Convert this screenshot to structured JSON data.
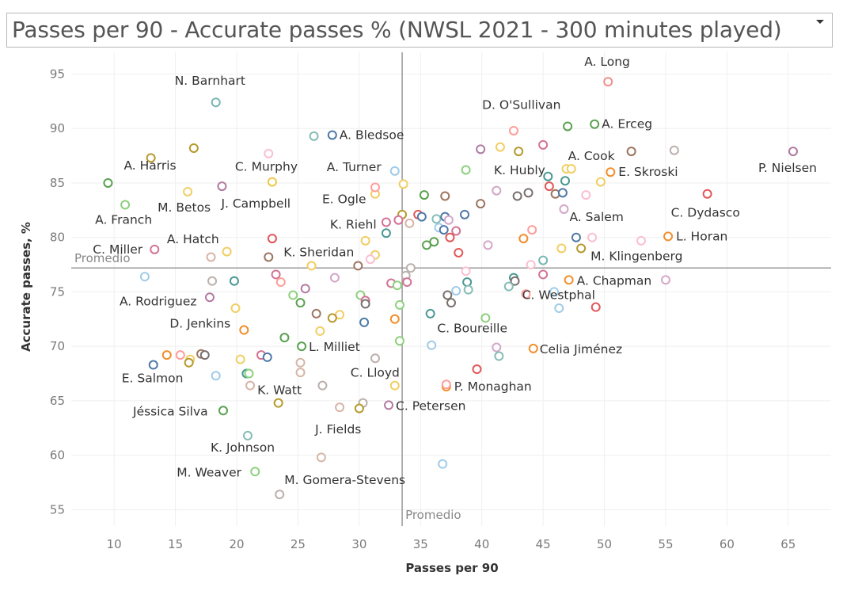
{
  "header": {
    "title": "Passes per 90 - Accurate passes % (NWSL 2021 - 300 minutes played)",
    "dropdown_icon": "caret-down-icon"
  },
  "chart_data": {
    "type": "scatter",
    "title": "Passes per 90 - Accurate passes % (NWSL 2021 - 300 minutes played)",
    "xlabel": "Passes per 90",
    "ylabel": "Accurate passes, %",
    "xlim": [
      6.5,
      68.5
    ],
    "ylim": [
      53.5,
      97
    ],
    "xticks": [
      10,
      15,
      20,
      25,
      30,
      35,
      40,
      45,
      50,
      55,
      60,
      65
    ],
    "yticks": [
      55,
      60,
      65,
      70,
      75,
      80,
      85,
      90,
      95
    ],
    "grid": true,
    "reference_lines": [
      {
        "axis": "x",
        "value": 33.5,
        "label": "Promedio"
      },
      {
        "axis": "y",
        "value": 77.2,
        "label": "Promedio"
      }
    ],
    "points": [
      {
        "x": 50.3,
        "y": 94.3,
        "label": "A. Long",
        "color": "#f28e8c"
      },
      {
        "x": 18.3,
        "y": 92.4,
        "label": "N. Barnhart",
        "color": "#76b7b2"
      },
      {
        "x": 47.0,
        "y": 90.2,
        "label": "D. O'Sullivan",
        "color": "#59a14f"
      },
      {
        "x": 49.2,
        "y": 90.4,
        "label": "A. Erceg",
        "color": "#59a14f"
      },
      {
        "x": 27.8,
        "y": 89.4,
        "label": "A. Bledsoe",
        "color": "#4e79a7"
      },
      {
        "x": 65.4,
        "y": 87.9,
        "label": "P. Nielsen",
        "color": "#b07aa1"
      },
      {
        "x": 52.2,
        "y": 87.9,
        "label": "A. Cook",
        "color": "#9c755f"
      },
      {
        "x": 50.5,
        "y": 86.0,
        "label": "E. Skroski",
        "color": "#f28e2b"
      },
      {
        "x": 9.5,
        "y": 85.0,
        "label": "A. Harris",
        "color": "#59a14f"
      },
      {
        "x": 22.9,
        "y": 85.1,
        "label": "C. Murphy",
        "color": "#edc948"
      },
      {
        "x": 32.9,
        "y": 86.1,
        "label": "A. Turner",
        "color": "#a0cbe8"
      },
      {
        "x": 46.8,
        "y": 85.2,
        "label": "K. Hubly",
        "color": "#499894"
      },
      {
        "x": 31.3,
        "y": 84.0,
        "label": "E. Ogle",
        "color": "#f1ce63"
      },
      {
        "x": 58.4,
        "y": 84.0,
        "label": "C. Dydasco",
        "color": "#e15759"
      },
      {
        "x": 10.9,
        "y": 83.0,
        "label": "A. Franch",
        "color": "#8cd17d"
      },
      {
        "x": 16.0,
        "y": 84.2,
        "label": "M. Betos",
        "color": "#f1ce63"
      },
      {
        "x": 18.8,
        "y": 84.7,
        "label": "J. Campbell",
        "color": "#b07aa1"
      },
      {
        "x": 46.7,
        "y": 82.6,
        "label": "A. Salem",
        "color": "#d4a6c8"
      },
      {
        "x": 32.2,
        "y": 81.4,
        "label": "K. Riehl",
        "color": "#d37295"
      },
      {
        "x": 55.2,
        "y": 80.1,
        "label": "L. Horan",
        "color": "#f28e2b"
      },
      {
        "x": 22.9,
        "y": 79.9,
        "label": "A. Hatch",
        "color": "#e15759"
      },
      {
        "x": 13.3,
        "y": 78.9,
        "label": "C. Miller",
        "color": "#d37295"
      },
      {
        "x": 48.1,
        "y": 79.0,
        "label": "M. Klingenberg",
        "color": "#b6992d"
      },
      {
        "x": 22.6,
        "y": 78.2,
        "label": "K. Sheridan",
        "color": "#9c755f"
      },
      {
        "x": 47.1,
        "y": 76.1,
        "label": "A. Chapman",
        "color": "#f28e2b"
      },
      {
        "x": 17.8,
        "y": 74.5,
        "label": "A. Rodriguez",
        "color": "#b07aa1"
      },
      {
        "x": 40.3,
        "y": 72.6,
        "label": "C. Boureille",
        "color": "#8cd17d"
      },
      {
        "x": 49.3,
        "y": 73.6,
        "label": "C. Westphal",
        "color": "#e15759"
      },
      {
        "x": 20.6,
        "y": 71.5,
        "label": "D. Jenkins",
        "color": "#f28e2b"
      },
      {
        "x": 25.3,
        "y": 70.0,
        "label": "L. Milliet",
        "color": "#59a14f"
      },
      {
        "x": 44.2,
        "y": 69.8,
        "label": "Celia Jiménez",
        "color": "#f28e2b"
      },
      {
        "x": 13.2,
        "y": 68.3,
        "label": "E. Salmon",
        "color": "#4e79a7"
      },
      {
        "x": 32.9,
        "y": 66.4,
        "label": "C. Lloyd",
        "color": "#f1ce63"
      },
      {
        "x": 21.1,
        "y": 66.4,
        "label": "K. Watt",
        "color": "#d7b5a6"
      },
      {
        "x": 37.1,
        "y": 66.3,
        "label": "P. Monaghan",
        "color": "#f28e2b"
      },
      {
        "x": 18.9,
        "y": 64.1,
        "label": "Jéssica Silva",
        "color": "#59a14f"
      },
      {
        "x": 32.4,
        "y": 64.6,
        "label": "C. Petersen",
        "color": "#b07aa1"
      },
      {
        "x": 28.4,
        "y": 64.4,
        "label": "J. Fields",
        "color": "#d7b5a6"
      },
      {
        "x": 20.9,
        "y": 61.8,
        "label": "K. Johnson",
        "color": "#86bcb6"
      },
      {
        "x": 21.5,
        "y": 58.5,
        "label": "M. Weaver",
        "color": "#8cd17d"
      },
      {
        "x": 23.5,
        "y": 56.4,
        "label": "M. Gomera-Stevens",
        "color": "#bab0ac"
      },
      {
        "x": 16.5,
        "y": 88.2,
        "color": "#b6992d"
      },
      {
        "x": 13.0,
        "y": 87.3,
        "color": "#b6992d"
      },
      {
        "x": 22.6,
        "y": 87.7,
        "color": "#fabfd2"
      },
      {
        "x": 26.3,
        "y": 89.3,
        "color": "#86bcb6"
      },
      {
        "x": 42.6,
        "y": 89.8,
        "color": "#ff9d9a"
      },
      {
        "x": 39.9,
        "y": 88.1,
        "color": "#b07aa1"
      },
      {
        "x": 41.5,
        "y": 88.3,
        "color": "#f1ce63"
      },
      {
        "x": 43.0,
        "y": 87.9,
        "color": "#b6992d"
      },
      {
        "x": 45.0,
        "y": 88.5,
        "color": "#d37295"
      },
      {
        "x": 55.7,
        "y": 88.0,
        "color": "#bab0ac"
      },
      {
        "x": 38.7,
        "y": 86.2,
        "color": "#8cd17d"
      },
      {
        "x": 45.4,
        "y": 85.6,
        "color": "#499894"
      },
      {
        "x": 46.9,
        "y": 86.3,
        "color": "#f1ce63"
      },
      {
        "x": 47.3,
        "y": 86.3,
        "color": "#f1ce63"
      },
      {
        "x": 49.7,
        "y": 85.1,
        "color": "#f1ce63"
      },
      {
        "x": 33.6,
        "y": 84.9,
        "color": "#f1ce63"
      },
      {
        "x": 31.3,
        "y": 84.6,
        "color": "#ff9d9a"
      },
      {
        "x": 35.3,
        "y": 83.9,
        "color": "#59a14f"
      },
      {
        "x": 37.0,
        "y": 83.8,
        "color": "#9c755f"
      },
      {
        "x": 41.2,
        "y": 84.3,
        "color": "#d4a6c8"
      },
      {
        "x": 42.9,
        "y": 83.8,
        "color": "#79706e"
      },
      {
        "x": 43.8,
        "y": 84.1,
        "color": "#79706e"
      },
      {
        "x": 45.5,
        "y": 84.7,
        "color": "#e15759"
      },
      {
        "x": 46.0,
        "y": 84.0,
        "color": "#9c755f"
      },
      {
        "x": 46.6,
        "y": 84.1,
        "color": "#4e79a7"
      },
      {
        "x": 48.5,
        "y": 83.9,
        "color": "#fabfd2"
      },
      {
        "x": 39.9,
        "y": 83.1,
        "color": "#9c755f"
      },
      {
        "x": 38.6,
        "y": 82.1,
        "color": "#4e79a7"
      },
      {
        "x": 33.5,
        "y": 82.1,
        "color": "#b6992d"
      },
      {
        "x": 34.8,
        "y": 82.1,
        "color": "#e15759"
      },
      {
        "x": 35.1,
        "y": 81.9,
        "color": "#4e79a7"
      },
      {
        "x": 36.3,
        "y": 81.7,
        "color": "#86bcb6"
      },
      {
        "x": 37.0,
        "y": 81.9,
        "color": "#4e79a7"
      },
      {
        "x": 37.3,
        "y": 81.6,
        "color": "#d4a6c8"
      },
      {
        "x": 34.1,
        "y": 81.3,
        "color": "#d7b5a6"
      },
      {
        "x": 33.2,
        "y": 81.6,
        "color": "#d37295"
      },
      {
        "x": 36.5,
        "y": 80.9,
        "color": "#a0cbe8"
      },
      {
        "x": 36.9,
        "y": 80.7,
        "color": "#4e79a7"
      },
      {
        "x": 37.9,
        "y": 80.6,
        "color": "#d37295"
      },
      {
        "x": 44.1,
        "y": 80.7,
        "color": "#ff9d9a"
      },
      {
        "x": 32.2,
        "y": 80.4,
        "color": "#499894"
      },
      {
        "x": 37.4,
        "y": 80.0,
        "color": "#e15759"
      },
      {
        "x": 43.4,
        "y": 79.9,
        "color": "#f28e2b"
      },
      {
        "x": 47.7,
        "y": 80.0,
        "color": "#4e79a7"
      },
      {
        "x": 49.0,
        "y": 80.0,
        "color": "#fabfd2"
      },
      {
        "x": 53.0,
        "y": 79.7,
        "color": "#fabfd2"
      },
      {
        "x": 30.5,
        "y": 79.7,
        "color": "#f1ce63"
      },
      {
        "x": 36.1,
        "y": 79.6,
        "color": "#59a14f"
      },
      {
        "x": 35.5,
        "y": 79.3,
        "color": "#59a14f"
      },
      {
        "x": 40.5,
        "y": 79.3,
        "color": "#d4a6c8"
      },
      {
        "x": 46.5,
        "y": 79.0,
        "color": "#f1ce63"
      },
      {
        "x": 19.2,
        "y": 78.7,
        "color": "#f1ce63"
      },
      {
        "x": 38.1,
        "y": 78.6,
        "color": "#e15759"
      },
      {
        "x": 31.3,
        "y": 78.4,
        "color": "#f1ce63"
      },
      {
        "x": 17.9,
        "y": 78.2,
        "color": "#d7b5a6"
      },
      {
        "x": 30.9,
        "y": 78.0,
        "color": "#fabfd2"
      },
      {
        "x": 45.0,
        "y": 77.9,
        "color": "#76b7b2"
      },
      {
        "x": 44.0,
        "y": 77.5,
        "color": "#fabfd2"
      },
      {
        "x": 26.1,
        "y": 77.4,
        "color": "#f1ce63"
      },
      {
        "x": 29.9,
        "y": 77.4,
        "color": "#9c755f"
      },
      {
        "x": 34.2,
        "y": 77.2,
        "color": "#bab0ac"
      },
      {
        "x": 38.7,
        "y": 76.9,
        "color": "#fabfd2"
      },
      {
        "x": 12.5,
        "y": 76.4,
        "color": "#a0cbe8"
      },
      {
        "x": 23.2,
        "y": 76.6,
        "color": "#d37295"
      },
      {
        "x": 28.0,
        "y": 76.3,
        "color": "#d4a6c8"
      },
      {
        "x": 33.8,
        "y": 76.5,
        "color": "#bab0ac"
      },
      {
        "x": 45.0,
        "y": 76.6,
        "color": "#d37295"
      },
      {
        "x": 42.6,
        "y": 76.3,
        "color": "#499894"
      },
      {
        "x": 42.7,
        "y": 76.0,
        "color": "#79706e"
      },
      {
        "x": 55.0,
        "y": 76.1,
        "color": "#d4a6c8"
      },
      {
        "x": 18.0,
        "y": 76.0,
        "color": "#bab0ac"
      },
      {
        "x": 19.8,
        "y": 76.0,
        "color": "#499894"
      },
      {
        "x": 23.6,
        "y": 75.9,
        "color": "#ff9d9a"
      },
      {
        "x": 32.6,
        "y": 75.8,
        "color": "#d37295"
      },
      {
        "x": 33.1,
        "y": 75.6,
        "color": "#8cd17d"
      },
      {
        "x": 33.9,
        "y": 75.9,
        "color": "#d37295"
      },
      {
        "x": 38.8,
        "y": 75.9,
        "color": "#499894"
      },
      {
        "x": 42.2,
        "y": 75.5,
        "color": "#86bcb6"
      },
      {
        "x": 25.6,
        "y": 75.3,
        "color": "#b07aa1"
      },
      {
        "x": 38.9,
        "y": 75.2,
        "color": "#86bcb6"
      },
      {
        "x": 37.9,
        "y": 75.1,
        "color": "#a0cbe8"
      },
      {
        "x": 45.9,
        "y": 75.0,
        "color": "#a0cbe8"
      },
      {
        "x": 43.6,
        "y": 74.8,
        "color": "#ff9d9a"
      },
      {
        "x": 24.6,
        "y": 74.7,
        "color": "#8cd17d"
      },
      {
        "x": 30.1,
        "y": 74.7,
        "color": "#8cd17d"
      },
      {
        "x": 37.2,
        "y": 74.7,
        "color": "#79706e"
      },
      {
        "x": 30.5,
        "y": 74.2,
        "color": "#d37295"
      },
      {
        "x": 25.2,
        "y": 74.0,
        "color": "#59a14f"
      },
      {
        "x": 30.5,
        "y": 73.9,
        "color": "#79706e"
      },
      {
        "x": 37.5,
        "y": 74.0,
        "color": "#79706e"
      },
      {
        "x": 33.3,
        "y": 73.8,
        "color": "#8cd17d"
      },
      {
        "x": 19.9,
        "y": 73.5,
        "color": "#f1ce63"
      },
      {
        "x": 46.3,
        "y": 73.5,
        "color": "#a0cbe8"
      },
      {
        "x": 26.5,
        "y": 73.0,
        "color": "#9c755f"
      },
      {
        "x": 28.4,
        "y": 72.9,
        "color": "#f1ce63"
      },
      {
        "x": 27.8,
        "y": 72.6,
        "color": "#b6992d"
      },
      {
        "x": 32.9,
        "y": 72.5,
        "color": "#f28e2b"
      },
      {
        "x": 35.8,
        "y": 73.0,
        "color": "#499894"
      },
      {
        "x": 30.4,
        "y": 72.2,
        "color": "#4e79a7"
      },
      {
        "x": 26.8,
        "y": 71.4,
        "color": "#f1ce63"
      },
      {
        "x": 23.9,
        "y": 70.8,
        "color": "#59a14f"
      },
      {
        "x": 33.3,
        "y": 70.5,
        "color": "#8cd17d"
      },
      {
        "x": 35.9,
        "y": 70.1,
        "color": "#a0cbe8"
      },
      {
        "x": 41.2,
        "y": 69.9,
        "color": "#d4a6c8"
      },
      {
        "x": 17.1,
        "y": 69.3,
        "color": "#9c755f"
      },
      {
        "x": 17.4,
        "y": 69.2,
        "color": "#79706e"
      },
      {
        "x": 15.4,
        "y": 69.2,
        "color": "#ff9d9a"
      },
      {
        "x": 14.3,
        "y": 69.2,
        "color": "#f28e2b"
      },
      {
        "x": 22.0,
        "y": 69.2,
        "color": "#d37295"
      },
      {
        "x": 22.5,
        "y": 69.0,
        "color": "#4e79a7"
      },
      {
        "x": 41.4,
        "y": 69.1,
        "color": "#86bcb6"
      },
      {
        "x": 16.2,
        "y": 68.8,
        "color": "#f1ce63"
      },
      {
        "x": 20.3,
        "y": 68.8,
        "color": "#f1ce63"
      },
      {
        "x": 31.3,
        "y": 68.9,
        "color": "#bab0ac"
      },
      {
        "x": 16.1,
        "y": 68.5,
        "color": "#b6992d"
      },
      {
        "x": 25.2,
        "y": 68.5,
        "color": "#d7b5a6"
      },
      {
        "x": 39.6,
        "y": 67.9,
        "color": "#e15759"
      },
      {
        "x": 25.2,
        "y": 67.6,
        "color": "#d7b5a6"
      },
      {
        "x": 18.3,
        "y": 67.3,
        "color": "#a0cbe8"
      },
      {
        "x": 20.8,
        "y": 67.5,
        "color": "#499894"
      },
      {
        "x": 21.0,
        "y": 67.5,
        "color": "#8cd17d"
      },
      {
        "x": 27.0,
        "y": 66.4,
        "color": "#bab0ac"
      },
      {
        "x": 37.1,
        "y": 66.5,
        "color": "#ff9d9a"
      },
      {
        "x": 23.4,
        "y": 64.8,
        "color": "#b6992d"
      },
      {
        "x": 30.3,
        "y": 64.8,
        "color": "#bab0ac"
      },
      {
        "x": 30.0,
        "y": 64.3,
        "color": "#b6992d"
      },
      {
        "x": 26.9,
        "y": 59.8,
        "color": "#d7b5a6"
      },
      {
        "x": 36.8,
        "y": 59.2,
        "color": "#a0cbe8"
      }
    ]
  }
}
